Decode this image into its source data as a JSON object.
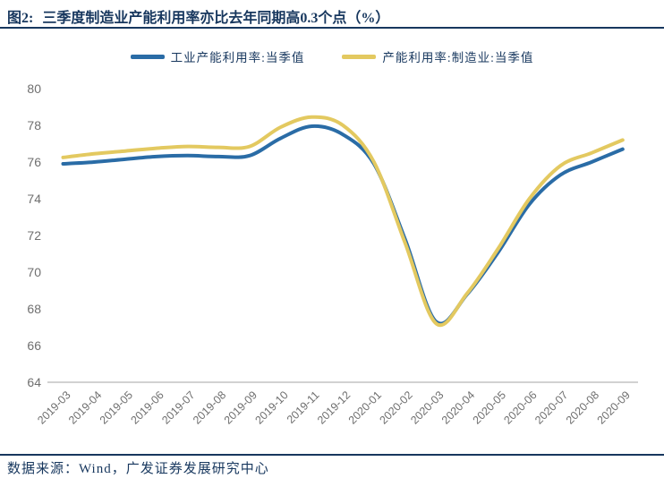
{
  "header": {
    "label": "图2:",
    "title": "三季度制造业产能利用率亦比去年同期高0.3个点（%）"
  },
  "footer": {
    "text": "数据来源：Wind，广发证券发展研究中心"
  },
  "colors": {
    "navy": "#17375E",
    "blue_line": "#2A6CA6",
    "yellow_line": "#E3C960",
    "axis_label": "#6F6F6F",
    "axis_line": "#D2D2D2"
  },
  "chart_data": {
    "type": "line",
    "title": "",
    "xlabel": "",
    "ylabel": "",
    "ylim": [
      64,
      80
    ],
    "ytick_step": 2,
    "grid": false,
    "legend_position": "top",
    "categories": [
      "2019-03",
      "2019-04",
      "2019-05",
      "2019-06",
      "2019-07",
      "2019-08",
      "2019-09",
      "2019-10",
      "2019-11",
      "2019-12",
      "2020-01",
      "2020-02",
      "2020-03",
      "2020-04",
      "2020-05",
      "2020-06",
      "2020-07",
      "2020-08",
      "2020-09"
    ],
    "series": [
      {
        "name": "工业产能利用率:当季值",
        "color": "#2A6CA6",
        "values": [
          75.9,
          76.0,
          76.15,
          76.3,
          76.35,
          76.3,
          76.35,
          77.3,
          77.95,
          77.5,
          75.9,
          71.8,
          67.3,
          68.8,
          71.1,
          73.7,
          75.3,
          76.0,
          76.7
        ]
      },
      {
        "name": "产能利用率:制造业:当季值",
        "color": "#E3C960",
        "values": [
          76.25,
          76.45,
          76.6,
          76.75,
          76.85,
          76.8,
          76.85,
          77.9,
          78.45,
          78.0,
          76.0,
          71.6,
          67.2,
          68.85,
          71.3,
          74.0,
          75.8,
          76.5,
          77.2
        ]
      }
    ]
  }
}
